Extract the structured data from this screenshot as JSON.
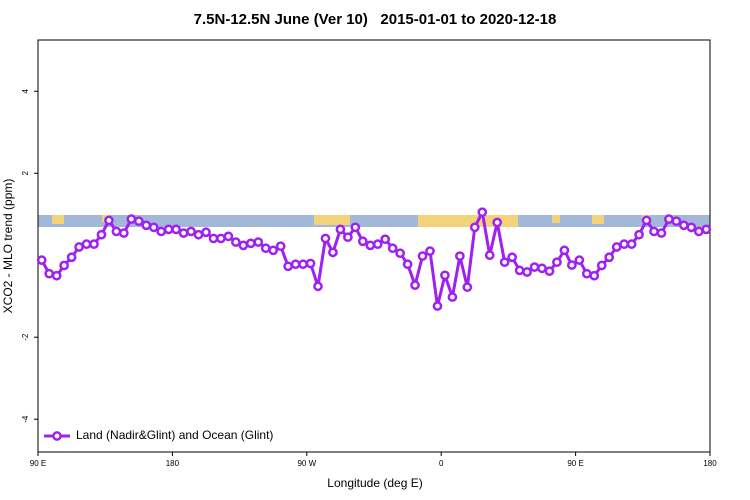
{
  "chart_data": {
    "type": "line",
    "title": "7.5N-12.5N June (Ver 10)   2015-01-01 to 2020-12-18",
    "x_label": "Longitude (deg E)",
    "y_label": "XCO2 - MLO trend (ppm)",
    "xlim": [
      90,
      540
    ],
    "ylim": [
      -4.8,
      5.25
    ],
    "xticks": [
      {
        "value": 90,
        "label": "90 E"
      },
      180,
      {
        "value": 270,
        "label": "90 W"
      },
      {
        "value": 360,
        "label": "0"
      },
      {
        "value": 450,
        "label": "90 E"
      },
      {
        "value": 540,
        "label": "180"
      }
    ],
    "yticks": [
      -4,
      -2,
      2,
      4
    ],
    "legend": "bottom-left",
    "x": [
      92.5,
      97.5,
      102.5,
      107.5,
      112.5,
      117.5,
      122.5,
      127.5,
      132.5,
      137.5,
      142.5,
      147.5,
      152.5,
      157.5,
      162.5,
      167.5,
      172.5,
      177.5,
      182.5,
      187.5,
      192.5,
      197.5,
      202.5,
      207.5,
      212.5,
      217.5,
      222.5,
      227.5,
      232.5,
      237.5,
      242.5,
      247.5,
      252.5,
      257.5,
      262.5,
      267.5,
      272.5,
      277.5,
      282.5,
      287.5,
      292.5,
      297.5,
      302.5,
      307.5,
      312.5,
      317.5,
      322.5,
      327.5,
      332.5,
      337.5,
      342.5,
      347.5,
      352.5,
      357.5,
      362.5,
      367.5,
      372.5,
      377.5,
      382.5,
      387.5,
      392.5,
      397.5,
      402.5,
      407.5,
      412.5,
      417.5,
      422.5,
      427.5,
      432.5,
      437.5,
      442.5,
      447.5,
      452.5,
      457.5,
      462.5,
      467.5,
      472.5,
      477.5,
      482.5,
      487.5,
      492.5,
      497.5,
      502.5,
      507.5,
      512.5,
      517.5,
      522.5,
      527.5,
      532.5,
      537.5
    ],
    "series": [
      {
        "name": "Land (Nadir&Glint) and Ocean (Glint)",
        "color": "#a020f0",
        "values": [
          -0.12,
          -0.45,
          -0.5,
          -0.25,
          -0.05,
          0.2,
          0.27,
          0.27,
          0.5,
          0.85,
          0.58,
          0.54,
          0.88,
          0.83,
          0.73,
          0.68,
          0.58,
          0.63,
          0.63,
          0.54,
          0.58,
          0.5,
          0.56,
          0.41,
          0.41,
          0.46,
          0.32,
          0.24,
          0.29,
          0.32,
          0.17,
          0.12,
          0.22,
          -0.27,
          -0.22,
          -0.22,
          -0.2,
          -0.76,
          0.41,
          0.07,
          0.63,
          0.44,
          0.68,
          0.34,
          0.24,
          0.27,
          0.39,
          0.17,
          0.05,
          -0.22,
          -0.73,
          -0.02,
          0.1,
          -1.24,
          -0.49,
          -1.02,
          -0.02,
          -0.78,
          0.68,
          1.05,
          0,
          0.8,
          -0.17,
          -0.05,
          -0.37,
          -0.41,
          -0.29,
          -0.32,
          -0.39,
          -0.17,
          0.12,
          -0.24,
          -0.12,
          -0.45,
          -0.5,
          -0.25,
          -0.05,
          0.2,
          0.27,
          0.27,
          0.5,
          0.85,
          0.58,
          0.54,
          0.88,
          0.83,
          0.73,
          0.68,
          0.58,
          0.63
        ]
      }
    ]
  }
}
